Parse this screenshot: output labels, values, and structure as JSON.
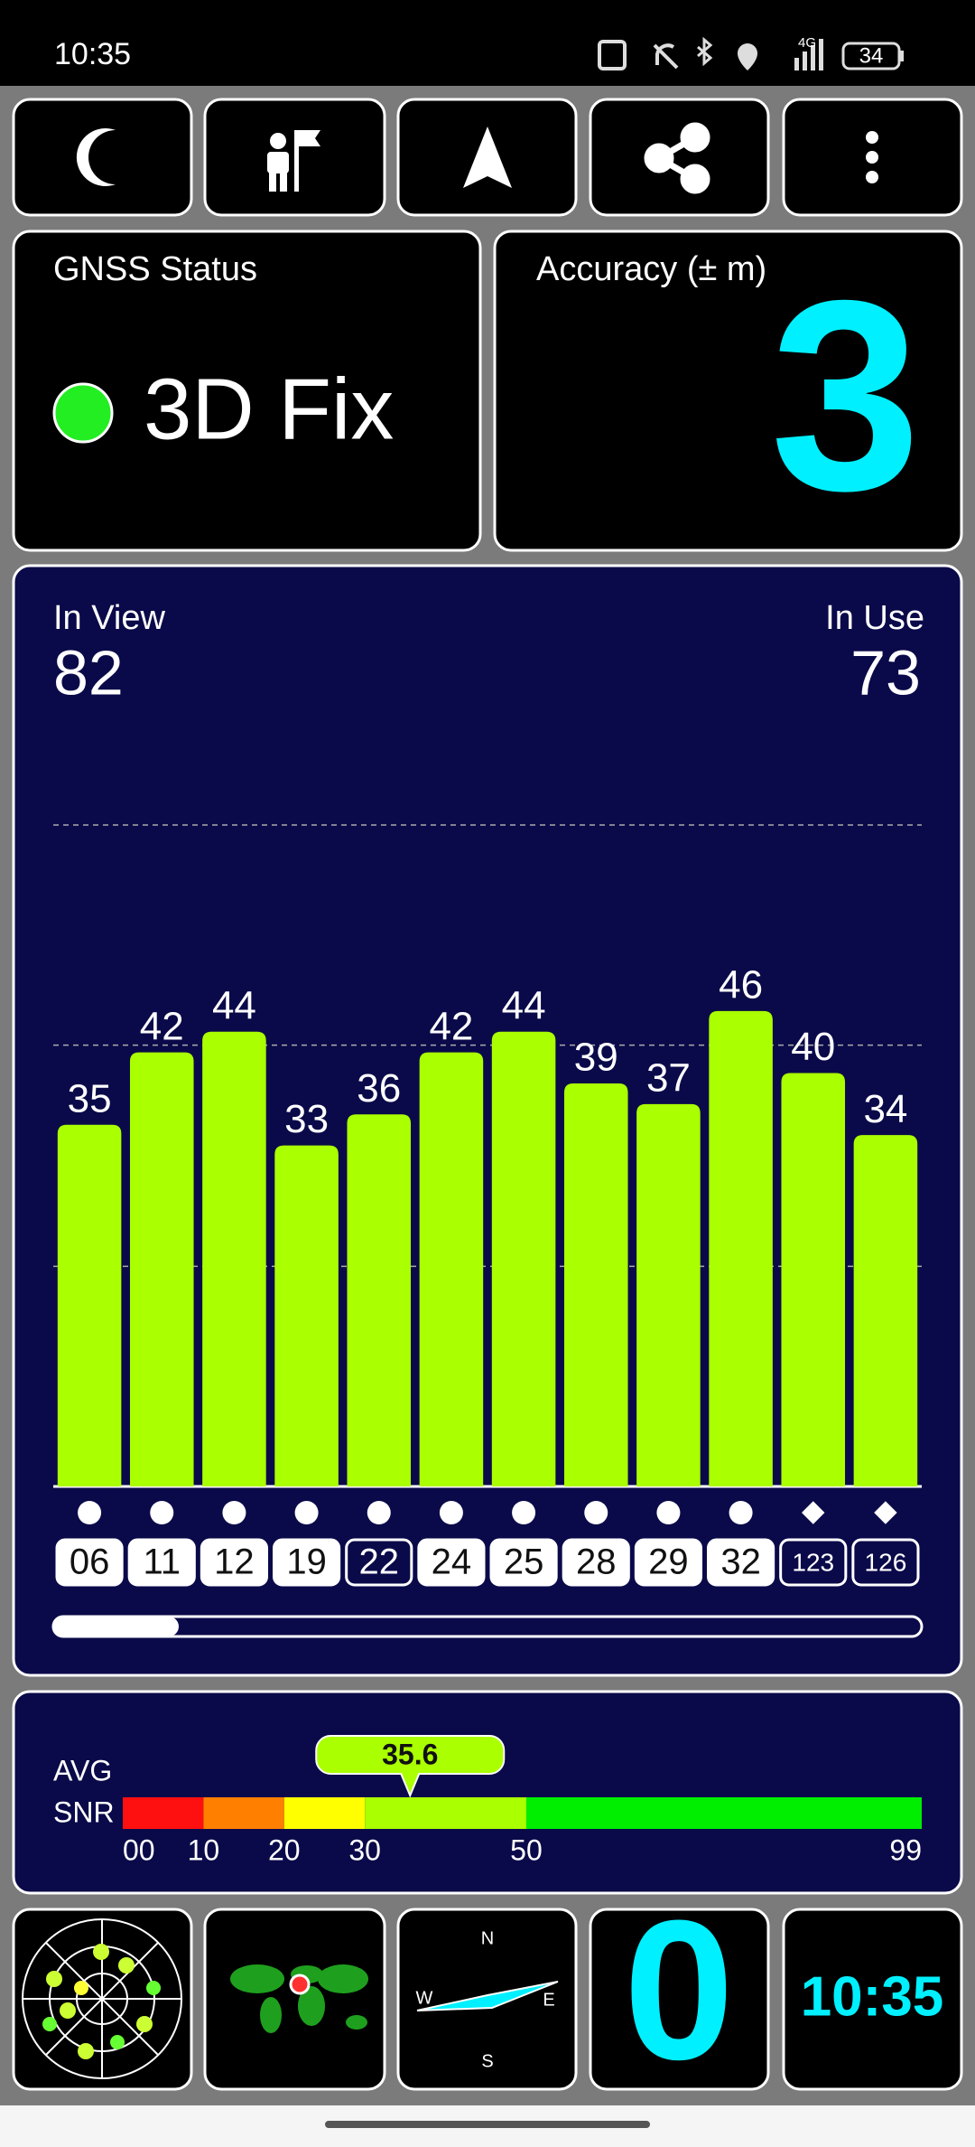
{
  "status_bar": {
    "time": "10:35",
    "network": "4G",
    "battery": "34"
  },
  "gnss_status": {
    "title": "GNSS Status",
    "fix": "3D Fix"
  },
  "accuracy": {
    "title": "Accuracy (± m)",
    "value": 3
  },
  "satellites": {
    "in_view_label": "In View",
    "in_view": 82,
    "in_use_label": "In Use",
    "in_use": 73
  },
  "chart_data": {
    "type": "bar",
    "categories": [
      "06",
      "11",
      "12",
      "19",
      "22",
      "24",
      "25",
      "28",
      "29",
      "32",
      "123",
      "126"
    ],
    "values": [
      35,
      42,
      44,
      33,
      36,
      42,
      44,
      39,
      37,
      46,
      40,
      34
    ],
    "markers": [
      "circle",
      "circle",
      "circle",
      "circle",
      "circle",
      "circle",
      "circle",
      "circle",
      "circle",
      "circle",
      "diamond",
      "diamond"
    ],
    "in_use": [
      true,
      true,
      true,
      true,
      false,
      true,
      true,
      true,
      true,
      true,
      false,
      false
    ],
    "color": "#aaff00",
    "ylim": [
      0,
      64
    ],
    "yticks": [
      21.3,
      42.7,
      64
    ],
    "grid": true
  },
  "snr": {
    "labels": [
      "AVG",
      "SNR"
    ],
    "value": 35.6,
    "xlim": [
      0,
      99
    ],
    "xticks": [
      {
        "value": 0,
        "label": "00"
      },
      10,
      20,
      30,
      50,
      99
    ],
    "band_colors": [
      "#ff1010",
      "#ff7f00",
      "#ffff00",
      "#aaff00",
      "#00ee00"
    ]
  },
  "compass": {
    "north": "N",
    "east": "E",
    "south": "S",
    "west": "W"
  },
  "speed": 0,
  "clock": "10:35"
}
